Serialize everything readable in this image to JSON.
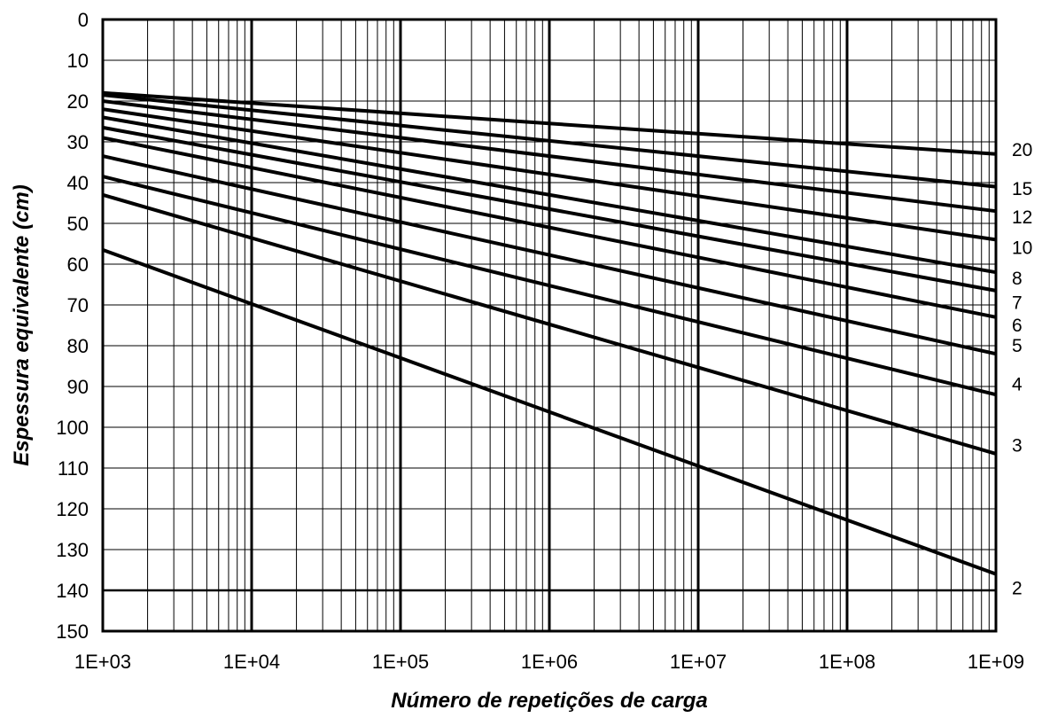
{
  "chart_data": {
    "type": "line",
    "title": "",
    "xlabel": "Número de repetições de carga",
    "ylabel": "Espessura equivalente (cm)",
    "x_scale": "log",
    "xlim": [
      1000,
      1000000000
    ],
    "ylim": [
      0,
      150
    ],
    "y_inverted": true,
    "grid": true,
    "x_ticks": [
      1000,
      10000,
      100000,
      1000000,
      10000000,
      100000000,
      1000000000
    ],
    "x_tick_labels": [
      "1E+03",
      "1E+04",
      "1E+05",
      "1E+06",
      "1E+07",
      "1E+08",
      "1E+09"
    ],
    "y_ticks": [
      0,
      10,
      20,
      30,
      40,
      50,
      60,
      70,
      80,
      90,
      100,
      110,
      120,
      130,
      140,
      150
    ],
    "y_tick_labels": [
      "0",
      "10",
      "20",
      "30",
      "40",
      "50",
      "60",
      "70",
      "80",
      "90",
      "100",
      "110",
      "120",
      "130",
      "140",
      "150"
    ],
    "reference_line_y": 140,
    "series": [
      {
        "name": "20",
        "x": [
          1000,
          1000000000
        ],
        "y": [
          18,
          33
        ]
      },
      {
        "name": "15",
        "x": [
          1000,
          1000000000
        ],
        "y": [
          18.5,
          41
        ]
      },
      {
        "name": "12",
        "x": [
          1000,
          1000000000
        ],
        "y": [
          20,
          47
        ]
      },
      {
        "name": "10",
        "x": [
          1000,
          1000000000
        ],
        "y": [
          22,
          54
        ]
      },
      {
        "name": "8",
        "x": [
          1000,
          1000000000
        ],
        "y": [
          24,
          62
        ]
      },
      {
        "name": "7",
        "x": [
          1000,
          1000000000
        ],
        "y": [
          26.5,
          66.5
        ]
      },
      {
        "name": "6",
        "x": [
          1000,
          1000000000
        ],
        "y": [
          29,
          73
        ]
      },
      {
        "name": "5",
        "x": [
          1000,
          1000000000
        ],
        "y": [
          33.5,
          82
        ]
      },
      {
        "name": "4",
        "x": [
          1000,
          1000000000
        ],
        "y": [
          38.5,
          92
        ]
      },
      {
        "name": "3",
        "x": [
          1000,
          1000000000
        ],
        "y": [
          43,
          106.5
        ]
      },
      {
        "name": "2",
        "x": [
          1000,
          1000000000
        ],
        "y": [
          56.5,
          136
        ]
      }
    ],
    "curve_labels": [
      {
        "text": "20",
        "y": 32
      },
      {
        "text": "15",
        "y": 41.5
      },
      {
        "text": "12",
        "y": 48.5
      },
      {
        "text": "10",
        "y": 56
      },
      {
        "text": "8",
        "y": 63.5
      },
      {
        "text": "7",
        "y": 69.5
      },
      {
        "text": "6",
        "y": 75
      },
      {
        "text": "5",
        "y": 80
      },
      {
        "text": "4",
        "y": 89.5
      },
      {
        "text": "3",
        "y": 104.5
      },
      {
        "text": "2",
        "y": 139.5
      }
    ]
  }
}
